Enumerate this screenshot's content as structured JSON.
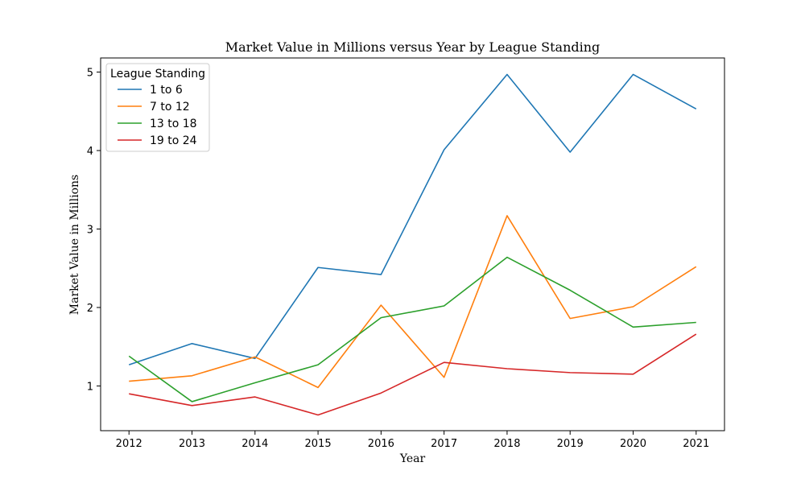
{
  "chart_data": {
    "type": "line",
    "title": "Market Value in Millions versus Year by League Standing",
    "xlabel": "Year",
    "ylabel": "Market Value in Millions",
    "x": [
      2012,
      2013,
      2014,
      2015,
      2016,
      2017,
      2018,
      2019,
      2020,
      2021
    ],
    "xlim": [
      2011.55,
      2021.45
    ],
    "ylim": [
      0.43,
      5.18
    ],
    "yticks": [
      1,
      2,
      3,
      4,
      5
    ],
    "grid": false,
    "legend": {
      "title": "League Standing",
      "placement": "top-left"
    },
    "series": [
      {
        "name": "1 to 6",
        "color": "#1f77b4",
        "values": [
          1.27,
          1.54,
          1.35,
          2.51,
          2.42,
          4.01,
          4.97,
          3.98,
          4.97,
          4.53
        ]
      },
      {
        "name": "7 to 12",
        "color": "#ff7f0e",
        "values": [
          1.06,
          1.13,
          1.37,
          0.98,
          2.03,
          1.11,
          3.17,
          1.86,
          2.01,
          2.52
        ]
      },
      {
        "name": "13 to 18",
        "color": "#2ca02c",
        "values": [
          1.38,
          0.8,
          1.04,
          1.27,
          1.87,
          2.02,
          2.64,
          2.22,
          1.75,
          1.81
        ]
      },
      {
        "name": "19 to 24",
        "color": "#d62728",
        "values": [
          0.9,
          0.75,
          0.86,
          0.63,
          0.91,
          1.3,
          1.22,
          1.17,
          1.15,
          1.66
        ]
      }
    ]
  }
}
